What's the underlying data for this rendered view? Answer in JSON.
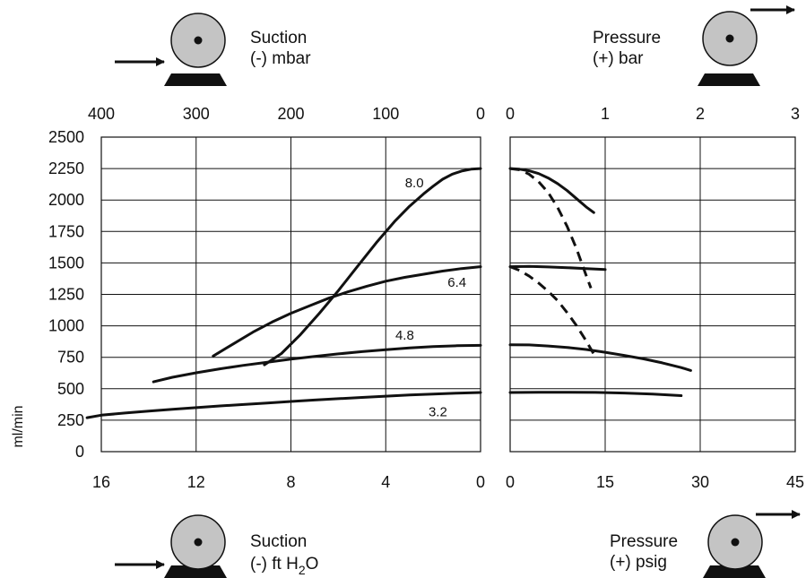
{
  "chart_data": {
    "type": "line",
    "ylabel": "ml/min",
    "ylim": [
      0,
      2500
    ],
    "yticks": [
      "0",
      "250",
      "500",
      "750",
      "1000",
      "1250",
      "1500",
      "1750",
      "2000",
      "2250",
      "2500"
    ],
    "grid": true,
    "panels": [
      {
        "id": "suction",
        "top_axis": {
          "label_line1": "Suction",
          "label_line2": "(-) mbar",
          "ticks": [
            "400",
            "300",
            "200",
            "100",
            "0"
          ],
          "range": [
            400,
            0
          ]
        },
        "bottom_axis": {
          "label_line1": "Suction",
          "label_line2_prefix": "(-) ft H",
          "label_sub": "2",
          "label_line2_suffix": "O",
          "ticks": [
            "16",
            "12",
            "8",
            "4",
            "0"
          ],
          "range": [
            16,
            0
          ]
        },
        "pump_icon": {
          "flow": "in",
          "arrow": "left"
        },
        "series": [
          {
            "name": "8.0",
            "style": "solid",
            "x": [
              0,
              10,
              20,
              30,
              40,
              50,
              60,
              75,
              90,
              110,
              130,
              150,
              170,
              190,
              210,
              228
            ],
            "y": [
              2250,
              2245,
              2230,
              2205,
              2165,
              2110,
              2050,
              1950,
              1835,
              1660,
              1470,
              1280,
              1100,
              930,
              780,
              690
            ]
          },
          {
            "name": "6.4",
            "style": "solid",
            "x": [
              0,
              20,
              40,
              60,
              80,
              100,
              120,
              140,
              160,
              180,
              200,
              220,
              240,
              260,
              282
            ],
            "y": [
              1470,
              1455,
              1435,
              1410,
              1385,
              1355,
              1315,
              1270,
              1220,
              1160,
              1100,
              1030,
              950,
              860,
              760
            ]
          },
          {
            "name": "4.8",
            "style": "solid",
            "x": [
              0,
              25,
              50,
              75,
              100,
              125,
              150,
              175,
              200,
              225,
              250,
              275,
              300,
              325,
              345
            ],
            "y": [
              845,
              842,
              835,
              825,
              810,
              795,
              777,
              757,
              735,
              711,
              686,
              658,
              627,
              591,
              555
            ]
          },
          {
            "name": "3.2",
            "style": "solid",
            "x": [
              0,
              25,
              50,
              75,
              100,
              125,
              150,
              175,
              200,
              225,
              250,
              275,
              300,
              325,
              350,
              375,
              400,
              415
            ],
            "y": [
              470,
              465,
              458,
              450,
              441,
              431,
              421,
              410,
              399,
              387,
              375,
              363,
              350,
              336,
              322,
              307,
              290,
              270
            ]
          }
        ]
      },
      {
        "id": "pressure",
        "top_axis": {
          "label_line1": "Pressure",
          "label_line2": "(+) bar",
          "ticks": [
            "0",
            "1",
            "2",
            "3"
          ],
          "range": [
            0,
            3
          ]
        },
        "bottom_axis": {
          "label_line1": "Pressure",
          "label_line2": "(+) psig",
          "ticks": [
            "0",
            "15",
            "30",
            "45"
          ],
          "range": [
            0,
            45
          ]
        },
        "pump_icon": {
          "flow": "out",
          "arrow": "right"
        },
        "series": [
          {
            "name": "8.0",
            "style": "solid",
            "x": [
              0,
              0.1,
              0.2,
              0.3,
              0.4,
              0.5,
              0.6,
              0.7,
              0.8,
              0.88
            ],
            "y": [
              2250,
              2245,
              2232,
              2210,
              2175,
              2130,
              2075,
              2010,
              1945,
              1900
            ]
          },
          {
            "name": "8.0",
            "style": "dashed",
            "x": [
              0,
              0.1,
              0.2,
              0.3,
              0.4,
              0.5,
              0.6,
              0.7,
              0.8,
              0.85
            ],
            "y": [
              2250,
              2240,
              2205,
              2145,
              2060,
              1940,
              1790,
              1610,
              1400,
              1300
            ]
          },
          {
            "name": "6.4",
            "style": "solid",
            "x": [
              0,
              0.2,
              0.4,
              0.6,
              0.8,
              1.0
            ],
            "y": [
              1470,
              1472,
              1468,
              1462,
              1455,
              1447
            ]
          },
          {
            "name": "6.4",
            "style": "dashed",
            "x": [
              0,
              0.1,
              0.2,
              0.3,
              0.4,
              0.5,
              0.6,
              0.7,
              0.8,
              0.9
            ],
            "y": [
              1470,
              1440,
              1395,
              1340,
              1275,
              1200,
              1105,
              1000,
              880,
              750
            ]
          },
          {
            "name": "4.8",
            "style": "solid",
            "x": [
              0,
              0.2,
              0.4,
              0.6,
              0.8,
              1.0,
              1.2,
              1.4,
              1.6,
              1.8,
              1.9
            ],
            "y": [
              850,
              848,
              840,
              828,
              812,
              790,
              765,
              738,
              706,
              668,
              645
            ]
          },
          {
            "name": "3.2",
            "style": "solid",
            "x": [
              0,
              0.3,
              0.6,
              0.9,
              1.2,
              1.5,
              1.8
            ],
            "y": [
              470,
              472,
              472,
              471,
              466,
              458,
              445
            ]
          }
        ]
      }
    ]
  },
  "icons": {
    "pump": "pump-icon",
    "arrow_in": "arrow-right-icon",
    "arrow_out": "arrow-right-icon"
  }
}
